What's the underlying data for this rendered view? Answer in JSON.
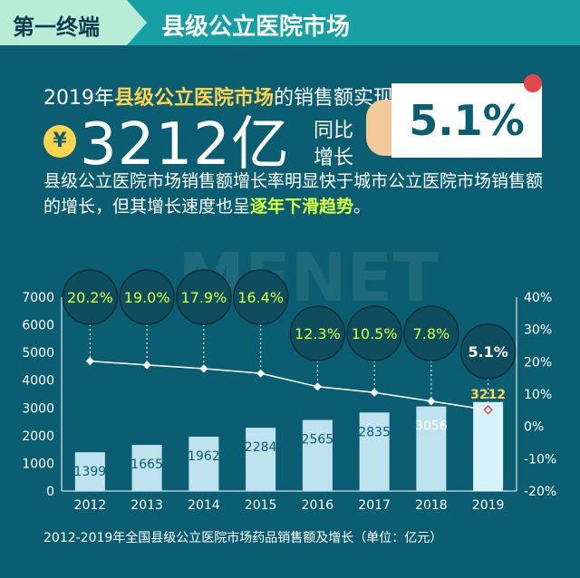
{
  "header": {
    "tag": "第一终端",
    "title": "县级公立医院市场"
  },
  "summary": {
    "prefix": "2019年",
    "highlight": "县级公立医院市场",
    "suffix": "的销售额实现",
    "currency": "¥",
    "amount": "3212亿",
    "yoy_label_1": "同比",
    "yoy_label_2": "增长",
    "yoy_value": "5.1%"
  },
  "paragraph": {
    "text": "县级公立医院市场销售额增长率明显快于城市公立医院市场销售额的增长，但其增长速度也呈",
    "highlight": "逐年下滑趋势",
    "end": "。"
  },
  "chart_data": {
    "type": "bar",
    "categories": [
      "2012",
      "2013",
      "2014",
      "2015",
      "2016",
      "2017",
      "2018",
      "2019"
    ],
    "values": [
      1399,
      1665,
      1962,
      2284,
      2565,
      2835,
      3056,
      3212
    ],
    "growth": [
      20.2,
      19.0,
      17.9,
      16.4,
      12.3,
      10.5,
      7.8,
      5.1
    ],
    "growth_labels": [
      "20.2%",
      "19.0%",
      "17.9%",
      "16.4%",
      "12.3%",
      "10.5%",
      "7.8%",
      "5.1%"
    ],
    "ylim": [
      0,
      7000
    ],
    "y_ticks": [
      "0",
      "1000",
      "2000",
      "3000",
      "4000",
      "5000",
      "6000",
      "7000"
    ],
    "y2lim": [
      -20,
      40
    ],
    "y2_ticks": [
      "-20%",
      "-10%",
      "0%",
      "10%",
      "20%",
      "30%",
      "40%"
    ],
    "colors": {
      "bar": "#bfe3ee",
      "bar_last": "#d6f2fa",
      "line": "#ffffff",
      "bubble": "#0d4d5e",
      "last_marker": "#e0484a",
      "label_last": "#ffd34d"
    }
  },
  "caption": "2012-2019年全国县级公立医院市场药品销售额及增长（单位：亿元）",
  "watermark": "MENET"
}
